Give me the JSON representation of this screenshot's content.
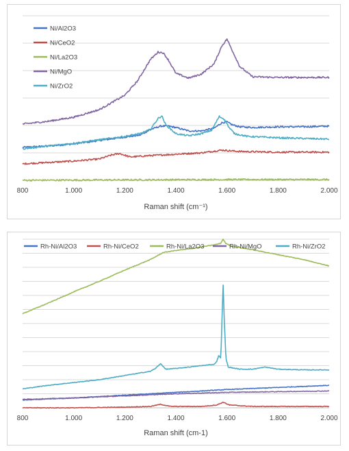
{
  "chart_data": [
    {
      "type": "line",
      "title": "",
      "xlabel": "Raman shift (cm⁻¹)",
      "ylabel": "",
      "xlim": [
        800,
        2000
      ],
      "ylim": [
        0,
        240
      ],
      "xtick_values": [
        800,
        1000,
        1200,
        1400,
        1600,
        1800,
        2000
      ],
      "xtick_labels": [
        "800",
        "1.000",
        "1.200",
        "1.400",
        "1.600",
        "1.800",
        "2.000"
      ],
      "ygrid_values": [
        40,
        80,
        120,
        160,
        200,
        240
      ],
      "legend_position": "top-left inside",
      "grid": "horizontal",
      "series": [
        {
          "name": "Ni/Al2O3",
          "color": "#4472C4",
          "x": [
            800,
            900,
            1000,
            1100,
            1200,
            1260,
            1300,
            1340,
            1370,
            1400,
            1450,
            1500,
            1550,
            1580,
            1600,
            1620,
            1650,
            1700,
            1800,
            1900,
            2000
          ],
          "y": [
            48,
            50,
            53,
            58,
            63,
            66,
            74,
            79,
            79,
            77,
            72,
            72,
            76,
            84,
            85,
            81,
            78,
            77,
            78,
            78,
            79
          ]
        },
        {
          "name": "Ni/CeO2",
          "color": "#C0504D",
          "x": [
            800,
            900,
            1000,
            1100,
            1150,
            1180,
            1220,
            1300,
            1400,
            1500,
            1580,
            1650,
            1800,
            2000
          ],
          "y": [
            24,
            26,
            28,
            31,
            37,
            39,
            34,
            36,
            38,
            40,
            44,
            42,
            41,
            41
          ]
        },
        {
          "name": "Ni/La2O3",
          "color": "#9BBB59",
          "x": [
            800,
            1200,
            1600,
            2000
          ],
          "y": [
            0,
            0.5,
            1,
            1
          ]
        },
        {
          "name": "Ni/MgO",
          "color": "#8064A2",
          "x": [
            800,
            900,
            1000,
            1100,
            1200,
            1250,
            1300,
            1330,
            1350,
            1370,
            1400,
            1450,
            1500,
            1550,
            1580,
            1600,
            1620,
            1650,
            1700,
            1800,
            1900,
            2000
          ],
          "y": [
            82,
            86,
            92,
            103,
            124,
            145,
            176,
            187,
            186,
            176,
            156,
            149,
            155,
            170,
            196,
            206,
            190,
            166,
            151,
            150,
            150,
            150
          ]
        },
        {
          "name": "Ni/ZrO2",
          "color": "#4BACC6",
          "x": [
            800,
            900,
            1000,
            1100,
            1200,
            1260,
            1300,
            1330,
            1345,
            1360,
            1400,
            1450,
            1500,
            1540,
            1570,
            1590,
            1610,
            1630,
            1680,
            1800,
            2000
          ],
          "y": [
            46,
            50,
            54,
            59,
            64,
            68,
            74,
            90,
            94,
            81,
            68,
            65,
            68,
            73,
            93,
            89,
            76,
            68,
            64,
            62,
            60
          ]
        }
      ]
    },
    {
      "type": "line",
      "title": "",
      "xlabel": "Raman shift (cm-1)",
      "ylabel": "",
      "xlim": [
        800,
        2000
      ],
      "ylim": [
        0,
        240
      ],
      "xtick_values": [
        800,
        1000,
        1200,
        1400,
        1600,
        1800,
        2000
      ],
      "xtick_labels": [
        "800",
        "1.000",
        "1.200",
        "1.400",
        "1.600",
        "1.800",
        "2.000"
      ],
      "ygrid_values": [
        20,
        40,
        60,
        80,
        100,
        120,
        140,
        160,
        180,
        200,
        220,
        240
      ],
      "legend_position": "top",
      "grid": "horizontal",
      "series": [
        {
          "name": "Rh-Ni/Al2O3",
          "color": "#4472C4",
          "x": [
            800,
            1000,
            1200,
            1400,
            1600,
            1800,
            2000
          ],
          "y": [
            11,
            14,
            18,
            22,
            26,
            29,
            32
          ]
        },
        {
          "name": "Rh-Ni/CeO2",
          "color": "#C0504D",
          "x": [
            800,
            1000,
            1200,
            1300,
            1340,
            1380,
            1500,
            1560,
            1585,
            1610,
            1700,
            2000
          ],
          "y": [
            0,
            0,
            1,
            2,
            5,
            2,
            2,
            4,
            8,
            4,
            2,
            2
          ]
        },
        {
          "name": "Rh-Ni/La2O3",
          "color": "#9BBB59",
          "x": [
            800,
            900,
            1000,
            1100,
            1200,
            1300,
            1350,
            1400,
            1450,
            1500,
            1550,
            1575,
            1585,
            1595,
            1620,
            1700,
            1800,
            1900,
            2000
          ],
          "y": [
            134,
            149,
            165,
            180,
            196,
            211,
            221,
            224,
            226,
            229,
            232,
            234,
            240,
            234,
            230,
            225,
            218,
            211,
            202
          ]
        },
        {
          "name": "Rh-Ni/MgO",
          "color": "#8064A2",
          "x": [
            800,
            1000,
            1200,
            1400,
            1600,
            1800,
            2000
          ],
          "y": [
            12,
            14,
            17,
            20,
            22,
            23,
            24
          ]
        },
        {
          "name": "Rh-Ni/ZrO2",
          "color": "#4BACC6",
          "x": [
            800,
            900,
            1000,
            1100,
            1200,
            1300,
            1320,
            1340,
            1360,
            1400,
            1500,
            1550,
            1560,
            1568,
            1576,
            1580,
            1585,
            1590,
            1596,
            1605,
            1650,
            1700,
            1750,
            1800,
            1900,
            2000
          ],
          "y": [
            27,
            32,
            36,
            40,
            46,
            52,
            56,
            63,
            55,
            56,
            60,
            62,
            66,
            75,
            70,
            120,
            175,
            120,
            70,
            58,
            55,
            55,
            58,
            55,
            54,
            54
          ]
        }
      ]
    }
  ]
}
